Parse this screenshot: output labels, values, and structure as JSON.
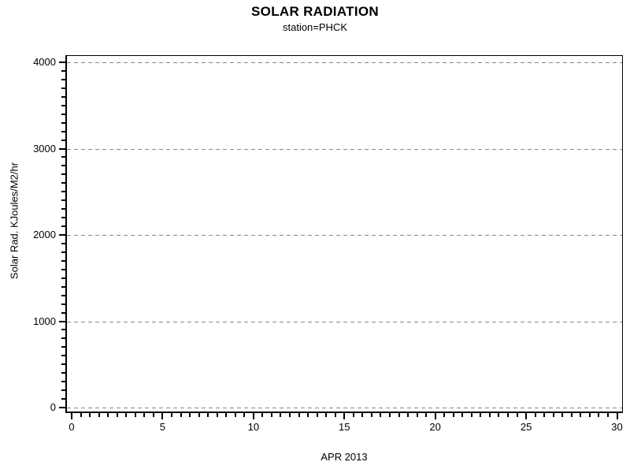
{
  "page": {
    "background_color": "#ffffff"
  },
  "chart_data": {
    "type": "line",
    "title": "SOLAR RADIATION",
    "subtitle": "station=PHCK",
    "xlabel": "APR 2013",
    "ylabel": "Solar Rad. KJoules/M2/hr",
    "xlim": [
      0,
      30
    ],
    "ylim": [
      0,
      4000
    ],
    "x_major_ticks": [
      0,
      5,
      10,
      15,
      20,
      25,
      30
    ],
    "x_minor_step": 0.5,
    "y_major_ticks": [
      0,
      1000,
      2000,
      3000,
      4000
    ],
    "y_minor_step": 100,
    "grid": "horizontal",
    "grid_style": "dashed",
    "gridline_color": "#888888",
    "axis_color": "#000000",
    "text_color": "#000000",
    "legend": "none",
    "series": []
  }
}
